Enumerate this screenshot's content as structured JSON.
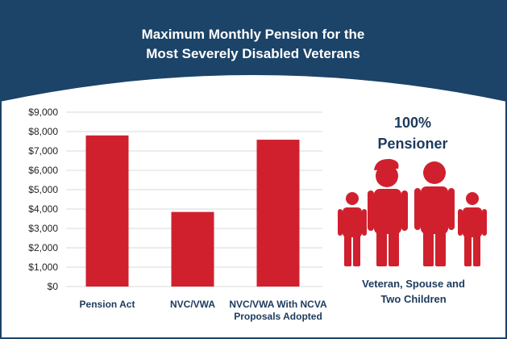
{
  "chart_data": {
    "type": "bar",
    "title_lines": [
      "Maximum Monthly Pension for the",
      "Most Severely Disabled Veterans"
    ],
    "categories": [
      {
        "lines": [
          "Pension Act"
        ]
      },
      {
        "lines": [
          "NVC/VWA"
        ]
      },
      {
        "lines": [
          "NVC/VWA With NCVA",
          "Proposals Adopted"
        ]
      }
    ],
    "values": [
      7800,
      3850,
      7580
    ],
    "ylim": [
      0,
      9000
    ],
    "yticks": [
      {
        "value": 0,
        "label": "$0"
      },
      {
        "value": 1000,
        "label": "$1,000"
      },
      {
        "value": 2000,
        "label": "$2,000"
      },
      {
        "value": 3000,
        "label": "$3,000"
      },
      {
        "value": 4000,
        "label": "$4,000"
      },
      {
        "value": 5000,
        "label": "$5,000"
      },
      {
        "value": 6000,
        "label": "$6,000"
      },
      {
        "value": 7000,
        "label": "$7,000"
      },
      {
        "value": 8000,
        "label": "$8,000"
      },
      {
        "value": 9000,
        "label": "$9,000"
      }
    ],
    "grid": true,
    "bar_color": "#d0202e"
  },
  "side_panel": {
    "heading_lines": [
      "100%",
      "Pensioner"
    ],
    "caption_lines": [
      "Veteran, Spouse and",
      "Two Children"
    ],
    "figure_icon": "family-of-four-icon"
  },
  "colors": {
    "navy": "#1c4368",
    "red": "#d0202e",
    "grid": "#d9d9d9",
    "text": "#1c3a5c"
  }
}
